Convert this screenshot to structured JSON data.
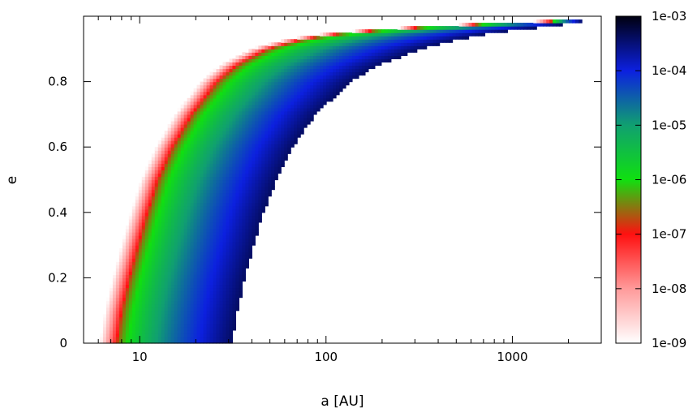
{
  "chart_data": {
    "type": "heatmap",
    "xlabel": "a [AU]",
    "ylabel": "e",
    "x_scale": "log",
    "xlim": [
      5,
      3000
    ],
    "ylim": [
      0,
      1
    ],
    "x_ticks": [
      {
        "value": 10,
        "label": "10"
      },
      {
        "value": 100,
        "label": "100"
      },
      {
        "value": 1000,
        "label": "1000"
      }
    ],
    "y_ticks": [
      {
        "value": 0,
        "label": "0"
      },
      {
        "value": 0.2,
        "label": "0.2"
      },
      {
        "value": 0.4,
        "label": "0.4"
      },
      {
        "value": 0.6,
        "label": "0.6"
      },
      {
        "value": 0.8,
        "label": "0.8"
      }
    ],
    "grid": false,
    "colorbar": {
      "scale": "log",
      "range": [
        1e-09,
        0.001
      ],
      "ticks": [
        {
          "value": 1e-09,
          "label": "1e-09"
        },
        {
          "value": 1e-08,
          "label": "1e-08"
        },
        {
          "value": 1e-07,
          "label": "1e-07"
        },
        {
          "value": 1e-06,
          "label": "1e-06"
        },
        {
          "value": 1e-05,
          "label": "1e-05"
        },
        {
          "value": 0.0001,
          "label": "1e-04"
        },
        {
          "value": 0.001,
          "label": "1e-03"
        }
      ],
      "stops": [
        {
          "value": 1e-09,
          "color": "#ffffff"
        },
        {
          "value": 1e-08,
          "color": "#ff9a9a"
        },
        {
          "value": 1e-07,
          "color": "#ff1010"
        },
        {
          "value": 1e-06,
          "color": "#10e010"
        },
        {
          "value": 1e-05,
          "color": "#10a070"
        },
        {
          "value": 0.0001,
          "color": "#0c20e0"
        },
        {
          "value": 0.001,
          "color": "#000010"
        }
      ]
    },
    "region": {
      "inner_edge": [
        {
          "e": 0.0,
          "a": 7.5
        },
        {
          "e": 0.1,
          "a": 8
        },
        {
          "e": 0.2,
          "a": 8.8
        },
        {
          "e": 0.3,
          "a": 9.8
        },
        {
          "e": 0.4,
          "a": 11
        },
        {
          "e": 0.5,
          "a": 12.5
        },
        {
          "e": 0.6,
          "a": 15
        },
        {
          "e": 0.7,
          "a": 19
        },
        {
          "e": 0.8,
          "a": 26
        },
        {
          "e": 0.85,
          "a": 33
        },
        {
          "e": 0.9,
          "a": 48
        },
        {
          "e": 0.93,
          "a": 75
        },
        {
          "e": 0.95,
          "a": 130
        },
        {
          "e": 0.97,
          "a": 400
        },
        {
          "e": 0.98,
          "a": 1000
        },
        {
          "e": 0.99,
          "a": 2600
        }
      ],
      "outer_edge": [
        {
          "e": 0.0,
          "a": 31
        },
        {
          "e": 0.1,
          "a": 33.5
        },
        {
          "e": 0.2,
          "a": 36.5
        },
        {
          "e": 0.3,
          "a": 41
        },
        {
          "e": 0.4,
          "a": 46
        },
        {
          "e": 0.5,
          "a": 54
        },
        {
          "e": 0.6,
          "a": 66
        },
        {
          "e": 0.7,
          "a": 88
        },
        {
          "e": 0.8,
          "a": 135
        },
        {
          "e": 0.85,
          "a": 190
        },
        {
          "e": 0.9,
          "a": 320
        },
        {
          "e": 0.93,
          "a": 520
        },
        {
          "e": 0.95,
          "a": 800
        },
        {
          "e": 0.97,
          "a": 1600
        },
        {
          "e": 0.99,
          "a": 2700
        }
      ]
    }
  }
}
